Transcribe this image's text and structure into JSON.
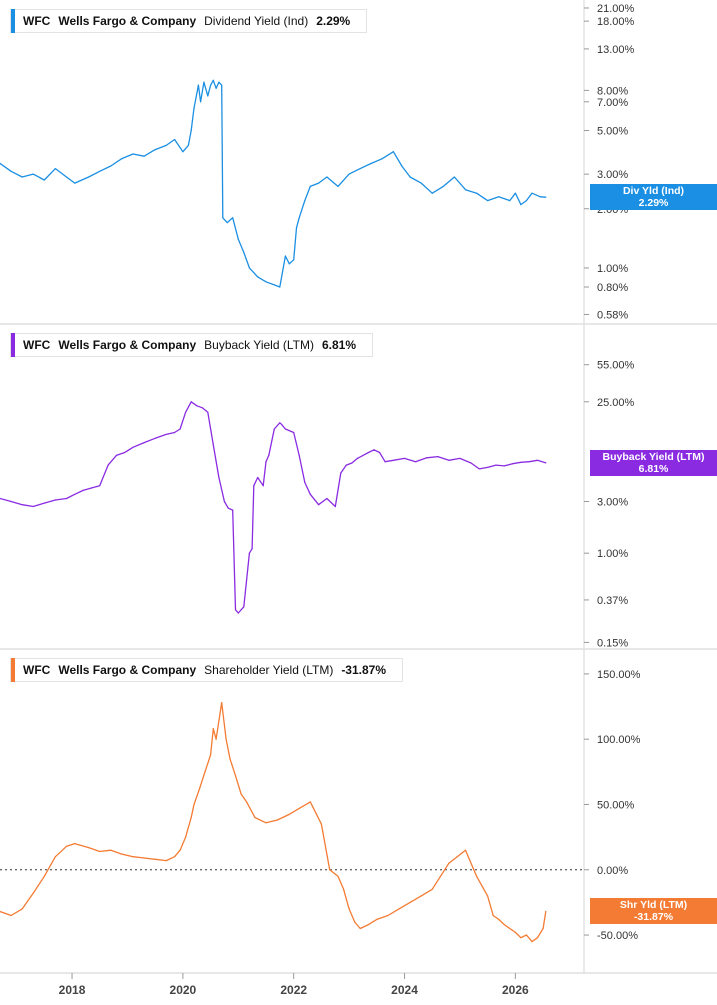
{
  "chart_data": [
    {
      "type": "line",
      "ticker": "WFC",
      "company": "Wells Fargo & Company",
      "metric": "Dividend Yield (Ind)",
      "current": "2.29%",
      "tag_label": "Div Yld (Ind)",
      "tag_value": "2.29%",
      "color": "#1a8fe3",
      "scale": "log",
      "ylim": [
        0.55,
        22
      ],
      "yticks": [
        {
          "v": 21,
          "label": "21.00%"
        },
        {
          "v": 18,
          "label": "18.00%"
        },
        {
          "v": 13,
          "label": "13.00%"
        },
        {
          "v": 8,
          "label": "8.00%"
        },
        {
          "v": 7,
          "label": "7.00%"
        },
        {
          "v": 5,
          "label": "5.00%"
        },
        {
          "v": 3,
          "label": "3.00%"
        },
        {
          "v": 2,
          "label": "2.00%"
        },
        {
          "v": 1,
          "label": "1.00%"
        },
        {
          "v": 0.8,
          "label": "0.80%"
        },
        {
          "v": 0.58,
          "label": "0.58%"
        }
      ],
      "x": [
        2016.7,
        2016.9,
        2017.1,
        2017.3,
        2017.5,
        2017.7,
        2017.9,
        2018.05,
        2018.3,
        2018.5,
        2018.7,
        2018.9,
        2019.1,
        2019.3,
        2019.5,
        2019.7,
        2019.85,
        2020.0,
        2020.1,
        2020.15,
        2020.2,
        2020.28,
        2020.32,
        2020.38,
        2020.45,
        2020.5,
        2020.55,
        2020.6,
        2020.65,
        2020.7,
        2020.72,
        2020.8,
        2020.9,
        2021.0,
        2021.1,
        2021.2,
        2021.35,
        2021.5,
        2021.65,
        2021.75,
        2021.85,
        2021.92,
        2022.0,
        2022.05,
        2022.1,
        2022.2,
        2022.3,
        2022.45,
        2022.6,
        2022.8,
        2023.0,
        2023.2,
        2023.4,
        2023.6,
        2023.8,
        2023.95,
        2024.1,
        2024.3,
        2024.5,
        2024.7,
        2024.9,
        2025.1,
        2025.3,
        2025.5,
        2025.7,
        2025.9,
        2026.0,
        2026.1,
        2026.2,
        2026.3,
        2026.45,
        2026.55
      ],
      "values": [
        3.4,
        3.1,
        2.9,
        3.0,
        2.8,
        3.2,
        2.9,
        2.7,
        2.9,
        3.1,
        3.3,
        3.6,
        3.8,
        3.7,
        4.0,
        4.2,
        4.5,
        3.9,
        4.2,
        5.0,
        6.5,
        8.5,
        7.0,
        8.8,
        7.5,
        8.5,
        9.0,
        8.2,
        8.8,
        8.5,
        1.8,
        1.7,
        1.8,
        1.4,
        1.2,
        1.0,
        0.9,
        0.85,
        0.82,
        0.8,
        1.15,
        1.05,
        1.1,
        1.6,
        1.8,
        2.2,
        2.6,
        2.7,
        2.9,
        2.6,
        3.0,
        3.2,
        3.4,
        3.6,
        3.9,
        3.3,
        2.9,
        2.7,
        2.4,
        2.6,
        2.9,
        2.5,
        2.4,
        2.2,
        2.3,
        2.2,
        2.4,
        2.1,
        2.2,
        2.4,
        2.3,
        2.29
      ]
    },
    {
      "type": "line",
      "ticker": "WFC",
      "company": "Wells Fargo & Company",
      "metric": "Buyback Yield (LTM)",
      "current": "6.81%",
      "tag_label": "Buyback Yield (LTM)",
      "tag_value": "6.81%",
      "color": "#8a2be2",
      "scale": "log",
      "ylim": [
        0.145,
        120
      ],
      "yticks": [
        {
          "v": 55,
          "label": "55.00%"
        },
        {
          "v": 25,
          "label": "25.00%"
        },
        {
          "v": 3,
          "label": "3.00%"
        },
        {
          "v": 1,
          "label": "1.00%"
        },
        {
          "v": 0.37,
          "label": "0.37%"
        },
        {
          "v": 0.15,
          "label": "0.15%"
        }
      ],
      "x": [
        2016.7,
        2016.9,
        2017.1,
        2017.3,
        2017.5,
        2017.7,
        2017.9,
        2018.05,
        2018.2,
        2018.35,
        2018.5,
        2018.65,
        2018.8,
        2018.95,
        2019.1,
        2019.3,
        2019.5,
        2019.7,
        2019.85,
        2019.95,
        2020.05,
        2020.15,
        2020.25,
        2020.35,
        2020.45,
        2020.55,
        2020.65,
        2020.75,
        2020.82,
        2020.9,
        2020.95,
        2021.0,
        2021.1,
        2021.2,
        2021.25,
        2021.28,
        2021.35,
        2021.45,
        2021.5,
        2021.55,
        2021.65,
        2021.75,
        2021.78,
        2021.85,
        2022.0,
        2022.1,
        2022.2,
        2022.3,
        2022.45,
        2022.6,
        2022.75,
        2022.85,
        2022.95,
        2023.05,
        2023.15,
        2023.25,
        2023.35,
        2023.45,
        2023.55,
        2023.65,
        2023.8,
        2024.0,
        2024.2,
        2024.4,
        2024.6,
        2024.8,
        2025.0,
        2025.2,
        2025.35,
        2025.5,
        2025.65,
        2025.8,
        2025.95,
        2026.1,
        2026.25,
        2026.4,
        2026.55
      ],
      "values": [
        3.2,
        3.0,
        2.8,
        2.7,
        2.9,
        3.1,
        3.2,
        3.5,
        3.8,
        4.0,
        4.2,
        6.5,
        8.0,
        8.5,
        9.5,
        10.5,
        11.5,
        12.5,
        13.0,
        14.0,
        20.0,
        25.0,
        23.0,
        22.0,
        20.0,
        10.0,
        5.0,
        3.0,
        2.6,
        2.5,
        0.3,
        0.28,
        0.32,
        1.0,
        1.1,
        4.2,
        5.0,
        4.2,
        7.0,
        8.0,
        14.0,
        16.0,
        15.5,
        14.0,
        13.0,
        8.0,
        4.5,
        3.5,
        2.8,
        3.2,
        2.7,
        5.5,
        6.5,
        6.8,
        7.5,
        8.0,
        8.5,
        9.0,
        8.5,
        7.0,
        7.2,
        7.5,
        7.0,
        7.6,
        7.8,
        7.2,
        7.5,
        6.8,
        6.0,
        6.2,
        6.5,
        6.4,
        6.7,
        6.9,
        7.0,
        7.2,
        6.81
      ]
    },
    {
      "type": "line",
      "ticker": "WFC",
      "company": "Wells Fargo & Company",
      "metric": "Shareholder Yield (LTM)",
      "current": "-31.87%",
      "tag_label": "Shr Yld (LTM)",
      "tag_value": "-31.87%",
      "color": "#f47b33",
      "scale": "linear",
      "ylim": [
        -76,
        166
      ],
      "yticks": [
        {
          "v": 150,
          "label": "150.00%"
        },
        {
          "v": 100,
          "label": "100.00%"
        },
        {
          "v": 50,
          "label": "50.00%"
        },
        {
          "v": 0,
          "label": "0.00%"
        },
        {
          "v": -50,
          "label": "-50.00%"
        }
      ],
      "zero_line": true,
      "x": [
        2016.7,
        2016.9,
        2017.1,
        2017.3,
        2017.5,
        2017.7,
        2017.9,
        2018.05,
        2018.3,
        2018.5,
        2018.7,
        2018.9,
        2019.1,
        2019.3,
        2019.5,
        2019.7,
        2019.85,
        2019.95,
        2020.05,
        2020.15,
        2020.2,
        2020.3,
        2020.4,
        2020.5,
        2020.55,
        2020.6,
        2020.7,
        2020.78,
        2020.85,
        2020.95,
        2021.05,
        2021.15,
        2021.3,
        2021.5,
        2021.7,
        2021.9,
        2022.1,
        2022.3,
        2022.5,
        2022.65,
        2022.8,
        2022.9,
        2023.0,
        2023.1,
        2023.2,
        2023.35,
        2023.5,
        2023.7,
        2023.9,
        2024.1,
        2024.3,
        2024.5,
        2024.65,
        2024.8,
        2024.95,
        2025.1,
        2025.3,
        2025.5,
        2025.6,
        2025.7,
        2025.8,
        2025.9,
        2026.0,
        2026.1,
        2026.2,
        2026.3,
        2026.4,
        2026.5,
        2026.55
      ],
      "values": [
        -32,
        -35,
        -30,
        -18,
        -5,
        10,
        18,
        20,
        17,
        14,
        15,
        12,
        10,
        9,
        8,
        7,
        10,
        15,
        25,
        40,
        50,
        62,
        75,
        88,
        108,
        100,
        128,
        100,
        85,
        72,
        58,
        52,
        40,
        36,
        38,
        42,
        47,
        52,
        35,
        0,
        -5,
        -15,
        -30,
        -40,
        -45,
        -42,
        -38,
        -35,
        -30,
        -25,
        -20,
        -15,
        -5,
        5,
        10,
        15,
        -5,
        -20,
        -35,
        -38,
        -42,
        -45,
        -48,
        -52,
        -50,
        -55,
        -52,
        -45,
        -31.87
      ]
    }
  ],
  "x_axis": {
    "ticks": [
      {
        "v": 2018,
        "label": "2018"
      },
      {
        "v": 2020,
        "label": "2020"
      },
      {
        "v": 2022,
        "label": "2022"
      },
      {
        "v": 2024,
        "label": "2024"
      },
      {
        "v": 2026,
        "label": "2026"
      }
    ]
  }
}
